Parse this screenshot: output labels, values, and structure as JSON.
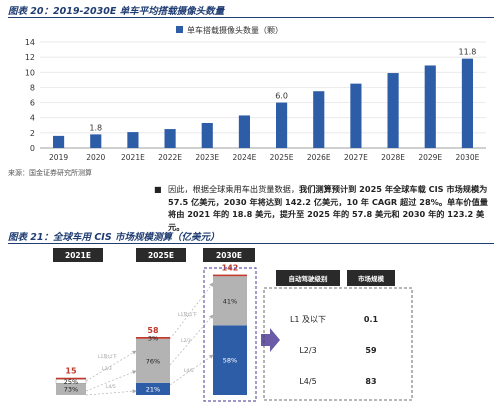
{
  "figure20": {
    "title": "图表 20：2019-2030E 单车平均搭载摄像头数量",
    "source": "来源：国金证券研究所测算",
    "chart_data": {
      "type": "bar",
      "categories": [
        "2019",
        "2020",
        "2021E",
        "2022E",
        "2023E",
        "2024E",
        "2025E",
        "2026E",
        "2027E",
        "2028E",
        "2029E",
        "2030E"
      ],
      "series": [
        {
          "name": "单车搭载摄像头数量（颗）",
          "values": [
            1.6,
            1.8,
            2.1,
            2.5,
            3.3,
            4.3,
            6.0,
            7.5,
            8.5,
            9.9,
            10.9,
            11.8
          ]
        }
      ],
      "data_labels": {
        "1": "1.8",
        "6": "6.0",
        "11": "11.8"
      },
      "ylim": [
        0,
        14
      ],
      "yticks": [
        "0",
        "2",
        "4",
        "6",
        "8",
        "10",
        "12",
        "14"
      ],
      "legend": "top",
      "grid": true,
      "bar_color": "#2d5da7"
    }
  },
  "paragraph": {
    "bullet": "■",
    "parts": [
      {
        "t": "因此，根据全球乘用车出货量数据，",
        "b": false
      },
      {
        "t": "我们测算预计到 2025 年全球车载 CIS 市场规模为 57.5 亿美元，2030 年将达到 142.2 亿美元，10 年 CAGR 超过 28%。单车价值量将由 2021 年的 18.8 美元，提升至 2025 年的 57.8 美元和 2030 年的 123.2 美元。",
        "b": true
      }
    ]
  },
  "figure21": {
    "title": "图表 21：全球车用 CIS 市场规模测算（亿美元）",
    "years": [
      "2021E",
      "2025E",
      "2030E"
    ],
    "stacks": [
      {
        "total": "15",
        "segments": [
          {
            "pct": 0.73,
            "label": "73%"
          },
          {
            "pct": 0.25,
            "label": "25%"
          },
          {
            "pct": 0.02,
            "label": ""
          }
        ]
      },
      {
        "total": "58",
        "segments": [
          {
            "pct": 0.21,
            "label": "21%"
          },
          {
            "pct": 0.76,
            "label": "76%"
          },
          {
            "pct": 0.03,
            "label": "3%"
          }
        ]
      },
      {
        "total": "142",
        "segments": [
          {
            "pct": 0.58,
            "label": "58%"
          },
          {
            "pct": 0.41,
            "label": "41%"
          },
          {
            "pct": 0.01,
            "label": ""
          }
        ]
      }
    ],
    "connector_labels": [
      "L1及以下",
      "L2/3",
      "L4/5"
    ],
    "table": {
      "headers": [
        "自动驾驶级别",
        "市场规模"
      ],
      "rows": [
        {
          "level": "L1 及以下",
          "value": "0.1"
        },
        {
          "level": "L2/3",
          "value": "59"
        },
        {
          "level": "L4/5",
          "value": "83"
        }
      ]
    },
    "colors": {
      "blue": "#2d5da7",
      "gray": "#b3b3b3",
      "red": "#c0392b",
      "header": "#2a2a2a"
    }
  }
}
